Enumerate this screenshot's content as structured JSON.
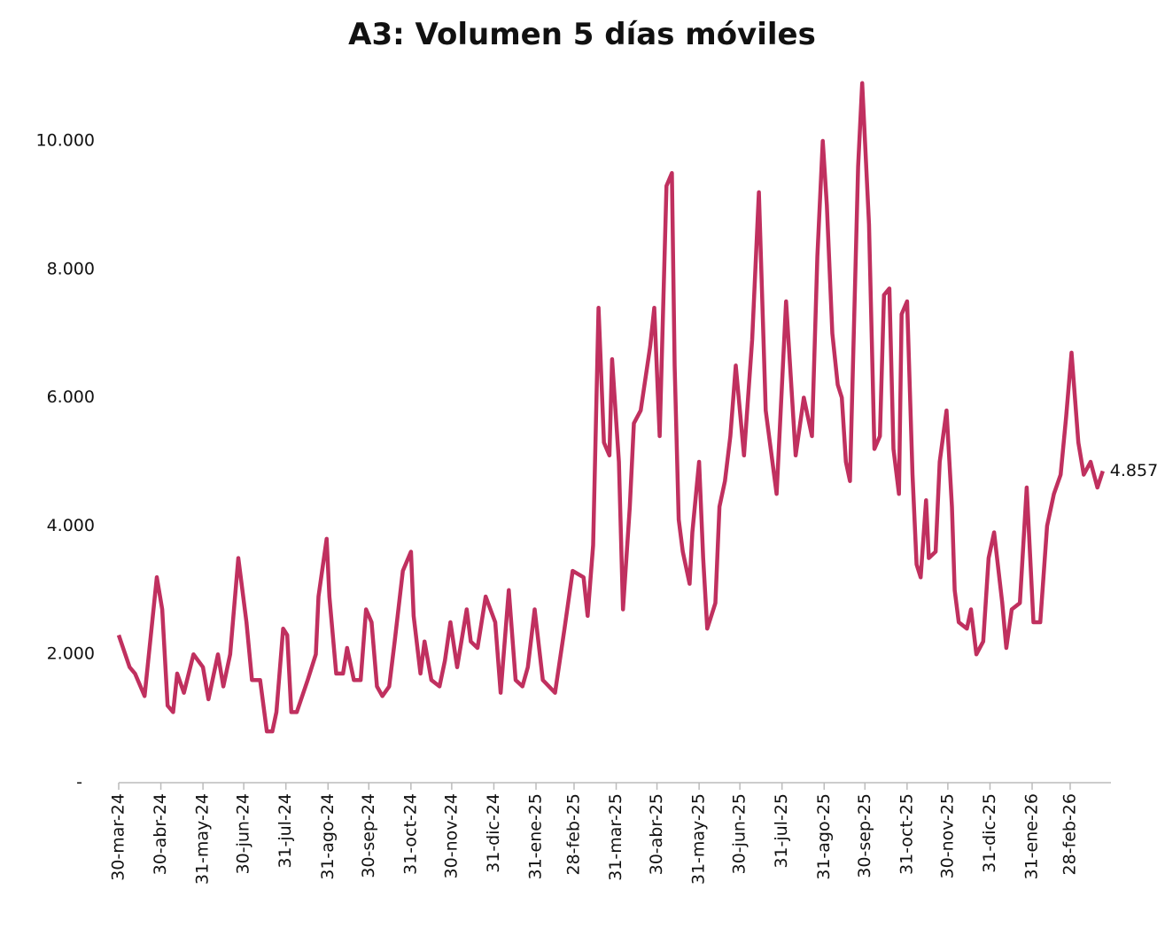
{
  "chart_data": {
    "type": "line",
    "title": "A3: Volumen 5 días móviles",
    "x": [
      "2024-03-30",
      "2024-04-07",
      "2024-04-11",
      "2024-04-18",
      "2024-04-27",
      "2024-05-01",
      "2024-05-05",
      "2024-05-09",
      "2024-05-12",
      "2024-05-17",
      "2024-05-24",
      "2024-05-31",
      "2024-06-04",
      "2024-06-11",
      "2024-06-15",
      "2024-06-20",
      "2024-06-26",
      "2024-07-02",
      "2024-07-06",
      "2024-07-12",
      "2024-07-17",
      "2024-07-21",
      "2024-07-24",
      "2024-07-29",
      "2024-08-01",
      "2024-08-04",
      "2024-08-08",
      "2024-08-16",
      "2024-08-22",
      "2024-08-24",
      "2024-08-30",
      "2024-09-01",
      "2024-09-06",
      "2024-09-11",
      "2024-09-14",
      "2024-09-19",
      "2024-09-24",
      "2024-09-28",
      "2024-10-02",
      "2024-10-06",
      "2024-10-10",
      "2024-10-15",
      "2024-10-19",
      "2024-10-25",
      "2024-10-31",
      "2024-11-02",
      "2024-11-07",
      "2024-11-10",
      "2024-11-15",
      "2024-11-21",
      "2024-11-25",
      "2024-11-29",
      "2024-12-04",
      "2024-12-11",
      "2024-12-14",
      "2024-12-19",
      "2024-12-25",
      "2025-01-01",
      "2025-01-05",
      "2025-01-11",
      "2025-01-16",
      "2025-01-21",
      "2025-01-25",
      "2025-01-30",
      "2025-02-05",
      "2025-02-14",
      "2025-02-21",
      "2025-02-27",
      "2025-03-07",
      "2025-03-10",
      "2025-03-14",
      "2025-03-18",
      "2025-03-22",
      "2025-03-26",
      "2025-03-28",
      "2025-04-02",
      "2025-04-05",
      "2025-04-10",
      "2025-04-13",
      "2025-04-18",
      "2025-04-25",
      "2025-04-28",
      "2025-05-02",
      "2025-05-07",
      "2025-05-11",
      "2025-05-13",
      "2025-05-16",
      "2025-05-19",
      "2025-05-24",
      "2025-05-26",
      "2025-05-31",
      "2025-06-03",
      "2025-06-06",
      "2025-06-12",
      "2025-06-15",
      "2025-06-19",
      "2025-06-23",
      "2025-06-27",
      "2025-07-03",
      "2025-07-09",
      "2025-07-14",
      "2025-07-19",
      "2025-07-27",
      "2025-08-03",
      "2025-08-10",
      "2025-08-16",
      "2025-08-22",
      "2025-08-26",
      "2025-08-30",
      "2025-09-02",
      "2025-09-06",
      "2025-09-10",
      "2025-09-13",
      "2025-09-16",
      "2025-09-19",
      "2025-09-25",
      "2025-09-28",
      "2025-10-03",
      "2025-10-07",
      "2025-10-11",
      "2025-10-14",
      "2025-10-18",
      "2025-10-21",
      "2025-10-25",
      "2025-10-27",
      "2025-10-31",
      "2025-11-04",
      "2025-11-07",
      "2025-11-10",
      "2025-11-14",
      "2025-11-16",
      "2025-11-21",
      "2025-11-24",
      "2025-11-29",
      "2025-12-03",
      "2025-12-05",
      "2025-12-08",
      "2025-12-14",
      "2025-12-17",
      "2025-12-21",
      "2025-12-26",
      "2025-12-30",
      "2026-01-03",
      "2026-01-09",
      "2026-01-12",
      "2026-01-16",
      "2026-01-22",
      "2026-01-27",
      "2026-02-01",
      "2026-02-06",
      "2026-02-11",
      "2026-02-16",
      "2026-02-21",
      "2026-02-25",
      "2026-03-01",
      "2026-03-06",
      "2026-03-10",
      "2026-03-15",
      "2026-03-20",
      "2026-03-24"
    ],
    "series": [
      {
        "name": "Volumen 5 días móviles",
        "color": "#c0305f",
        "values": [
          2300,
          1800,
          1700,
          1350,
          3200,
          2700,
          1200,
          1100,
          1700,
          1400,
          2000,
          1800,
          1300,
          2000,
          1500,
          2000,
          3500,
          2500,
          1600,
          1600,
          800,
          800,
          1100,
          2400,
          2300,
          1100,
          1100,
          1600,
          2000,
          2900,
          3800,
          2900,
          1700,
          1700,
          2100,
          1600,
          1600,
          2700,
          2500,
          1500,
          1350,
          1500,
          2200,
          3300,
          3600,
          2600,
          1700,
          2200,
          1600,
          1500,
          1900,
          2500,
          1800,
          2700,
          2200,
          2100,
          2900,
          2500,
          1400,
          3000,
          1600,
          1500,
          1800,
          2700,
          1600,
          1400,
          2400,
          3300,
          3200,
          2600,
          3700,
          7400,
          5300,
          5100,
          6600,
          5000,
          2700,
          4300,
          5600,
          5800,
          6800,
          7400,
          5400,
          9300,
          9500,
          6500,
          4100,
          3600,
          3100,
          3900,
          5000,
          3500,
          2400,
          2800,
          4300,
          4700,
          5400,
          6500,
          5100,
          6900,
          9200,
          5800,
          4500,
          7500,
          5100,
          6000,
          5400,
          8200,
          10000,
          9000,
          7000,
          6200,
          6000,
          5000,
          4700,
          9600,
          10900,
          8700,
          5200,
          5400,
          7600,
          7700,
          5200,
          4500,
          7300,
          7500,
          4800,
          3400,
          3200,
          4400,
          3500,
          3600,
          5000,
          5800,
          4300,
          3000,
          2500,
          2400,
          2700,
          2000,
          2200,
          3500,
          3900,
          2800,
          2100,
          2700,
          2800,
          4600,
          2500,
          2500,
          4000,
          4500,
          4800,
          5700,
          6700,
          5300,
          4800,
          5000,
          4600,
          4857
        ]
      }
    ],
    "end_label": {
      "value": 4857,
      "label": "4.857"
    },
    "xlim": [
      "2024-03-30",
      "2026-03-30"
    ],
    "xticks": [
      {
        "value": "2024-03-30",
        "label": "30-mar-24"
      },
      {
        "value": "2024-04-30",
        "label": "30-abr-24"
      },
      {
        "value": "2024-05-31",
        "label": "31-may-24"
      },
      {
        "value": "2024-06-30",
        "label": "30-jun-24"
      },
      {
        "value": "2024-07-31",
        "label": "31-jul-24"
      },
      {
        "value": "2024-08-31",
        "label": "31-ago-24"
      },
      {
        "value": "2024-09-30",
        "label": "30-sep-24"
      },
      {
        "value": "2024-10-31",
        "label": "31-oct-24"
      },
      {
        "value": "2024-11-30",
        "label": "30-nov-24"
      },
      {
        "value": "2024-12-31",
        "label": "31-dic-24"
      },
      {
        "value": "2025-01-31",
        "label": "31-ene-25"
      },
      {
        "value": "2025-02-28",
        "label": "28-feb-25"
      },
      {
        "value": "2025-03-31",
        "label": "31-mar-25"
      },
      {
        "value": "2025-04-30",
        "label": "30-abr-25"
      },
      {
        "value": "2025-05-31",
        "label": "31-may-25"
      },
      {
        "value": "2025-06-30",
        "label": "30-jun-25"
      },
      {
        "value": "2025-07-31",
        "label": "31-jul-25"
      },
      {
        "value": "2025-08-31",
        "label": "31-ago-25"
      },
      {
        "value": "2025-09-30",
        "label": "30-sep-25"
      },
      {
        "value": "2025-10-31",
        "label": "31-oct-25"
      },
      {
        "value": "2025-11-30",
        "label": "30-nov-25"
      },
      {
        "value": "2025-12-31",
        "label": "31-dic-25"
      },
      {
        "value": "2026-01-31",
        "label": "31-ene-26"
      },
      {
        "value": "2026-02-28",
        "label": "28-feb-26"
      }
    ],
    "ylim": [
      0,
      11000
    ],
    "yticks": [
      {
        "value": 0,
        "label": "-"
      },
      {
        "value": 2000,
        "label": "2.000"
      },
      {
        "value": 4000,
        "label": "4.000"
      },
      {
        "value": 6000,
        "label": "6.000"
      },
      {
        "value": 8000,
        "label": "8.000"
      },
      {
        "value": 10000,
        "label": "10.000"
      }
    ],
    "grid": false
  }
}
